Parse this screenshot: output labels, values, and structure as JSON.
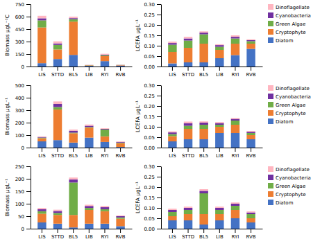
{
  "chart_data": [
    {
      "type": "bar",
      "stacked": true,
      "ylabel": "Biomass µgL⁻¹C",
      "categories": [
        "LIS",
        "STTD",
        "BL5",
        "LIB",
        "RYI",
        "RVB"
      ],
      "ylim": [
        0,
        750
      ],
      "yticks": [
        0,
        150,
        300,
        450,
        600,
        750
      ],
      "series": [
        {
          "name": "Diatom",
          "color": "#4472C4",
          "values": [
            40,
            90,
            140,
            10,
            65,
            12
          ]
        },
        {
          "name": "Cryptophyte",
          "color": "#ED7D31",
          "values": [
            430,
            115,
            400,
            5,
            60,
            5
          ]
        },
        {
          "name": "Green Algae",
          "color": "#70AD47",
          "values": [
            85,
            55,
            30,
            2,
            10,
            2
          ]
        },
        {
          "name": "Cyanobacteria",
          "color": "#7030A0",
          "values": [
            25,
            18,
            12,
            1,
            8,
            1
          ]
        },
        {
          "name": "Dinoflagellate",
          "color": "#FFB6C1",
          "values": [
            30,
            25,
            18,
            2,
            10,
            2
          ]
        }
      ]
    },
    {
      "type": "bar",
      "stacked": true,
      "ylabel": "LCEFA µgL⁻¹",
      "legend": "right",
      "categories": [
        "LIS",
        "STTD",
        "BL5",
        "LIB",
        "RYI",
        "RVB"
      ],
      "ylim": [
        0,
        0.3
      ],
      "yticks": [
        {
          "value": 0,
          "label": "0.00"
        },
        0.05,
        {
          "value": 0.1,
          "label": "0.10"
        },
        0.15,
        {
          "value": 0.2,
          "label": "0.20"
        },
        0.25,
        {
          "value": 0.3,
          "label": "0.30"
        }
      ],
      "series": [
        {
          "name": "Diatom",
          "color": "#4472C4",
          "values": [
            0.015,
            0.02,
            0.02,
            0.04,
            0.055,
            0.085
          ]
        },
        {
          "name": "Cryptophyte",
          "color": "#ED7D31",
          "values": [
            0.055,
            0.07,
            0.09,
            0.04,
            0.055,
            0.025
          ]
        },
        {
          "name": "Green Algae",
          "color": "#70AD47",
          "values": [
            0.035,
            0.035,
            0.045,
            0.015,
            0.025,
            0.012
          ]
        },
        {
          "name": "Cyanobacteria",
          "color": "#7030A0",
          "values": [
            0.008,
            0.01,
            0.008,
            0.008,
            0.008,
            0.005
          ]
        },
        {
          "name": "Dinoflagellate",
          "color": "#FFB6C1",
          "values": [
            0.007,
            0.008,
            0.006,
            0.004,
            0.007,
            0.004
          ]
        }
      ]
    },
    {
      "type": "bar",
      "stacked": true,
      "ylabel": "Biomass µgL⁻¹",
      "categories": [
        "LIS",
        "STTD",
        "BL5",
        "LIB",
        "RYI",
        "RVB"
      ],
      "ylim": [
        0,
        500
      ],
      "yticks": [
        0,
        100,
        200,
        300,
        400,
        500
      ],
      "series": [
        {
          "name": "Diatom",
          "color": "#4472C4",
          "values": [
            50,
            60,
            40,
            80,
            45,
            5
          ]
        },
        {
          "name": "Cryptophyte",
          "color": "#ED7D31",
          "values": [
            25,
            245,
            75,
            80,
            45,
            30
          ]
        },
        {
          "name": "Green Algae",
          "color": "#70AD47",
          "values": [
            5,
            20,
            5,
            5,
            55,
            5
          ]
        },
        {
          "name": "Cyanobacteria",
          "color": "#7030A0",
          "values": [
            5,
            25,
            15,
            10,
            5,
            5
          ]
        },
        {
          "name": "Dinoflagellate",
          "color": "#FFB6C1",
          "values": [
            5,
            20,
            10,
            10,
            5,
            5
          ]
        }
      ]
    },
    {
      "type": "bar",
      "stacked": true,
      "ylabel": "LCEFA µgL⁻¹",
      "legend": "right",
      "categories": [
        "LIS",
        "STTD",
        "BL5",
        "LIB",
        "RYI",
        "RVB"
      ],
      "ylim": [
        0,
        0.3
      ],
      "yticks": [
        {
          "value": 0,
          "label": "0.00"
        },
        0.05,
        {
          "value": 0.1,
          "label": "0.10"
        },
        0.15,
        {
          "value": 0.2,
          "label": "0.20"
        },
        0.25,
        {
          "value": 0.3,
          "label": "0.30"
        }
      ],
      "series": [
        {
          "name": "Diatom",
          "color": "#4472C4",
          "values": [
            0.03,
            0.04,
            0.04,
            0.07,
            0.07,
            0.04
          ]
        },
        {
          "name": "Cryptophyte",
          "color": "#ED7D31",
          "values": [
            0.025,
            0.05,
            0.05,
            0.03,
            0.04,
            0.02
          ]
        },
        {
          "name": "Green Algae",
          "color": "#70AD47",
          "values": [
            0.01,
            0.015,
            0.02,
            0.01,
            0.02,
            0.01
          ]
        },
        {
          "name": "Cyanobacteria",
          "color": "#7030A0",
          "values": [
            0.008,
            0.012,
            0.01,
            0.008,
            0.008,
            0.006
          ]
        },
        {
          "name": "Dinoflagellate",
          "color": "#FFB6C1",
          "values": [
            0.005,
            0.008,
            0.006,
            0.005,
            0.005,
            0.004
          ]
        }
      ]
    },
    {
      "type": "bar",
      "stacked": true,
      "ylabel": "Biomass µgL⁻¹",
      "categories": [
        "LIS",
        "STTD",
        "BL5",
        "LIB",
        "RYI",
        "RVB"
      ],
      "ylim": [
        0,
        250
      ],
      "yticks": [
        0,
        50,
        100,
        150,
        200,
        250
      ],
      "series": [
        {
          "name": "Diatom",
          "color": "#4472C4",
          "values": [
            25,
            20,
            5,
            20,
            20,
            10
          ]
        },
        {
          "name": "Cryptophyte",
          "color": "#ED7D31",
          "values": [
            35,
            35,
            50,
            55,
            50,
            30
          ]
        },
        {
          "name": "Green Algae",
          "color": "#70AD47",
          "values": [
            10,
            8,
            130,
            8,
            8,
            5
          ]
        },
        {
          "name": "Cyanobacteria",
          "color": "#7030A0",
          "values": [
            8,
            8,
            12,
            8,
            8,
            5
          ]
        },
        {
          "name": "Dinoflagellate",
          "color": "#FFB6C1",
          "values": [
            5,
            5,
            8,
            5,
            5,
            3
          ]
        }
      ]
    },
    {
      "type": "bar",
      "stacked": true,
      "ylabel": "LCEFA µgL⁻¹",
      "legend": "right",
      "categories": [
        "LIS",
        "STTD",
        "BL5",
        "LIB",
        "RYI",
        "RVB"
      ],
      "ylim": [
        0,
        0.3
      ],
      "yticks": [
        {
          "value": 0,
          "label": "0.00"
        },
        0.05,
        {
          "value": 0.1,
          "label": "0.10"
        },
        0.15,
        {
          "value": 0.2,
          "label": "0.20"
        },
        0.25,
        {
          "value": 0.3,
          "label": "0.30"
        }
      ],
      "series": [
        {
          "name": "Diatom",
          "color": "#4472C4",
          "values": [
            0.04,
            0.04,
            0.02,
            0.04,
            0.05,
            0.03
          ]
        },
        {
          "name": "Cryptophyte",
          "color": "#ED7D31",
          "values": [
            0.02,
            0.03,
            0.05,
            0.03,
            0.04,
            0.02
          ]
        },
        {
          "name": "Green Algae",
          "color": "#70AD47",
          "values": [
            0.02,
            0.02,
            0.1,
            0.02,
            0.02,
            0.02
          ]
        },
        {
          "name": "Cyanobacteria",
          "color": "#7030A0",
          "values": [
            0.01,
            0.01,
            0.012,
            0.01,
            0.01,
            0.008
          ]
        },
        {
          "name": "Dinoflagellate",
          "color": "#FFB6C1",
          "values": [
            0.006,
            0.006,
            0.008,
            0.006,
            0.006,
            0.005
          ]
        }
      ]
    }
  ]
}
